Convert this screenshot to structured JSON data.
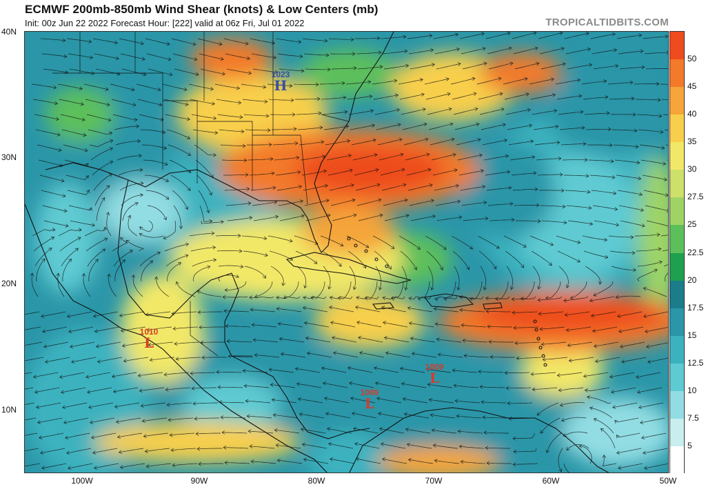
{
  "header": {
    "title": "ECMWF 200mb-850mb Wind Shear (knots) & Low Centers (mb)",
    "subtitle": "Init: 00z Jun 22 2022   Forecast Hour: [222]   valid at 06z Fri, Jul 01 2022",
    "brand": "TROPICALTIDBITS.COM"
  },
  "axes": {
    "lat_labels": [
      "40N",
      "30N",
      "20N",
      "10N"
    ],
    "lon_labels": [
      "100W",
      "90W",
      "80W",
      "70W",
      "60W",
      "50W"
    ]
  },
  "colorbar": {
    "labels": [
      "50",
      "45",
      "40",
      "35",
      "30",
      "27.5",
      "25",
      "22.5",
      "20",
      "17.5",
      "15",
      "12.5",
      "10",
      "7.5",
      "5"
    ],
    "colors": [
      "#ee4b1e",
      "#f27a2a",
      "#f5a53a",
      "#f8cf4c",
      "#f2e867",
      "#cde06a",
      "#9fd465",
      "#5dbf5b",
      "#1ea04f",
      "#1b7c8a",
      "#2a96a8",
      "#3cb2bf",
      "#5ecad2",
      "#92dde3",
      "#c8eef0",
      "#ffffff"
    ]
  },
  "pressure_centers": [
    {
      "type": "H",
      "value": "1023",
      "color": "#3a4fa0"
    },
    {
      "type": "L",
      "value": "1010",
      "color": "#d83a2a"
    },
    {
      "type": "L",
      "value": "1009",
      "color": "#d83a2a"
    },
    {
      "type": "L",
      "value": "1009",
      "color": "#d83a2a"
    }
  ]
}
